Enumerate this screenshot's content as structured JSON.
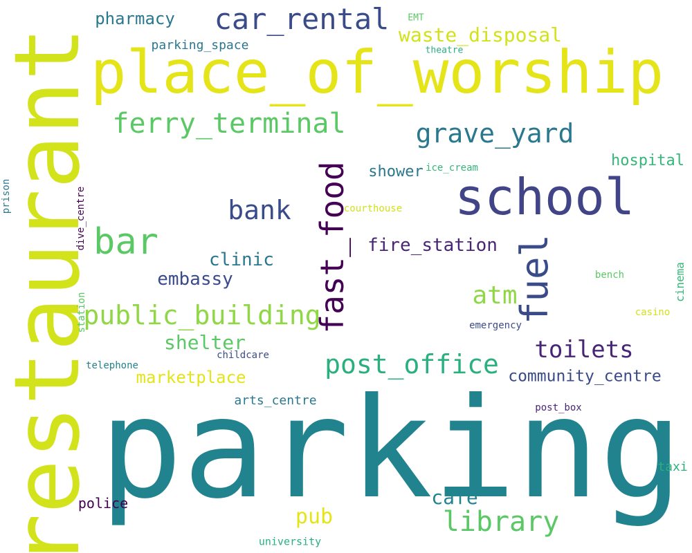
{
  "background": "#ffffff",
  "words": {
    "restaurant": "restaurant",
    "parking": "parking",
    "place_of_worship": "place_of_worship",
    "school": "school",
    "car_rental": "car_rental",
    "ferry_terminal": "ferry_terminal",
    "grave_yard": "grave_yard",
    "fast_food": "fast_food",
    "bank": "bank",
    "bar": "bar",
    "fuel": "fuel",
    "waste_disposal": "waste_disposal",
    "pharmacy": "pharmacy",
    "parking_space": "parking_space",
    "EMT": "EMT",
    "theatre": "theatre",
    "hospital": "hospital",
    "shower": "shower",
    "ice_cream": "ice_cream",
    "courthouse": "courthouse",
    "fire_station": "fire_station",
    "clinic": "clinic",
    "embassy": "embassy",
    "atm": "atm",
    "public_building": "public_building",
    "shelter": "shelter",
    "toilets": "toilets",
    "post_office": "post_office",
    "community_centre": "community_centre",
    "marketplace": "marketplace",
    "childcare": "childcare",
    "telephone": "telephone",
    "arts_centre": "arts_centre",
    "post_box": "post_box",
    "bench": "bench",
    "casino": "casino",
    "emergency": "emergency",
    "cinema": "cinema",
    "prison": "prison",
    "dive_centre": "dive_centre",
    "station": "station",
    "cafe": "cafe",
    "library": "library",
    "pub": "pub",
    "police": "police",
    "taxi": "taxi",
    "university": "university"
  }
}
